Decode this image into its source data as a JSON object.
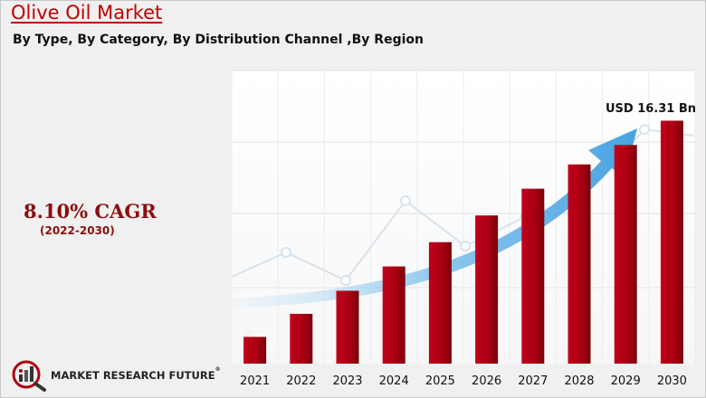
{
  "header": {
    "title": "Olive Oil Market",
    "subtitle": "By Type, By Category, By Distribution Channel ,By Region"
  },
  "highlight": {
    "cagr": "8.10% CAGR",
    "period": "(2022-2030)"
  },
  "brand": {
    "name": "MARKET RESEARCH FUTURE",
    "trademark": "®",
    "logo_icon": "magnifier-chart-icon"
  },
  "colors": {
    "bar": "#b00010",
    "bar_dark": "#6e000a",
    "title": "#c00000",
    "arrow": "#4aa3e0"
  },
  "chart_data": {
    "type": "bar",
    "categories": [
      "2021",
      "2022",
      "2023",
      "2024",
      "2025",
      "2026",
      "2027",
      "2028",
      "2029",
      "2030"
    ],
    "values": [
      1.1,
      2.05,
      3.0,
      4.0,
      5.0,
      6.1,
      7.2,
      8.2,
      9.0,
      10.0
    ],
    "annotation": "USD 16.31 Bn",
    "xlabel": "",
    "ylabel": "",
    "ylim": [
      0,
      10.5
    ],
    "grid": true,
    "legend": "none"
  }
}
